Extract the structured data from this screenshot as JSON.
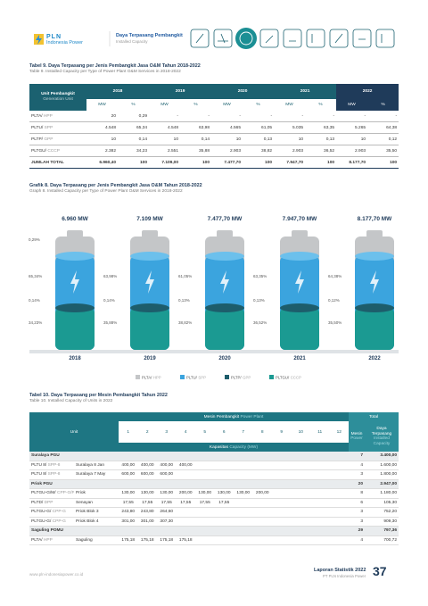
{
  "header": {
    "brand": "PLN",
    "brand_sub": "Indonesia Power",
    "section": "Daya Terpasang Pembangkit",
    "section_en": "Installed Capacity"
  },
  "table9": {
    "title": "Tabel 9. Daya Terpasang per Jenis Pembangkit Jasa O&M Tahun 2018-2022",
    "subtitle": "Table 9. Installed Capacity per Type of Power Plant O&M Services in 2018-2022",
    "unit_header": "Unit Pembangkit",
    "unit_header_en": "Generation Unit",
    "years": [
      "2018",
      "2019",
      "2020",
      "2021",
      "2022"
    ],
    "mw": "MW",
    "pct": "%",
    "rows": [
      {
        "label": "PLTA/",
        "label_en": "HPP",
        "cells": [
          "20",
          "0,29",
          "-",
          "-",
          "-",
          "-",
          "-",
          "-",
          "-",
          "-"
        ]
      },
      {
        "label": "PLTU/",
        "label_en": "SPP",
        "cells": [
          "4.548",
          "65,34",
          "4.548",
          "63,98",
          "4.565",
          "61,05",
          "5.035",
          "63,35",
          "5.265",
          "64,38"
        ]
      },
      {
        "label": "PLTP/",
        "label_en": "GPP",
        "cells": [
          "10",
          "0,14",
          "10",
          "0,14",
          "10",
          "0,13",
          "10",
          "0,13",
          "10",
          "0,12"
        ]
      },
      {
        "label": "PLTGU/",
        "label_en": "CCCP",
        "cells": [
          "2.382",
          "34,23",
          "2.551",
          "35,88",
          "2.903",
          "38,82",
          "2.903",
          "36,52",
          "2.903",
          "35,50"
        ]
      }
    ],
    "total": {
      "label": "JUMLAH TOTAL",
      "cells": [
        "6.960,40",
        "100",
        "7.109,00",
        "100",
        "7.477,70",
        "100",
        "7.947,70",
        "100",
        "8.177,70",
        "100"
      ]
    }
  },
  "graph8": {
    "title": "Grafik 8. Daya Terpasang per Jenis Pembangkit Jasa O&M Tahun 2018-2022",
    "subtitle": "Graph 8. Installed Capacity per Type of Power Plant O&M Services in 2018-2022",
    "years": [
      "2018",
      "2019",
      "2020",
      "2021",
      "2022"
    ],
    "totals": [
      "6.960 MW",
      "7.109 MW",
      "7.477,70 MW",
      "7.947,70 MW",
      "8.177,70 MW"
    ],
    "labels": [
      [
        "0,29%",
        "65,34%",
        "0,14%",
        "34,23%"
      ],
      [
        "63,98%",
        "0,14%",
        "35,88%"
      ],
      [
        "61,05%",
        "0,13%",
        "38,82%"
      ],
      [
        "63,35%",
        "0,13%",
        "36,52%"
      ],
      [
        "64,38%",
        "0,12%",
        "35,50%"
      ]
    ],
    "legend": [
      {
        "label": "PLTA/",
        "label_en": "HPP",
        "color": "#c4c6c8"
      },
      {
        "label": "PLTU/",
        "label_en": "SPP",
        "color": "#3ba4de"
      },
      {
        "label": "PLTP/",
        "label_en": "GPP",
        "color": "#1d5d6b"
      },
      {
        "label": "PLTGU/",
        "label_en": "CCCP",
        "color": "#1b9a92"
      }
    ]
  },
  "table10": {
    "title": "Tabel 10. Daya Terpasang per Mesin Pembangkit Tahun 2022",
    "subtitle": "Table 10. Installed Capacity of Units in 2022",
    "unit_header": "Unit",
    "machine_header": "Mesin Pembangkit",
    "machine_header_en": "Power Plant",
    "total_header": "Total",
    "cols": [
      "1",
      "2",
      "3",
      "4",
      "5",
      "6",
      "7",
      "8",
      "9",
      "10",
      "11",
      "12"
    ],
    "total_machine": "Mesin",
    "total_machine_en": "Power",
    "total_capacity": "Daya Terpasang",
    "total_capacity_en": "Installed Capacity",
    "capacity_header": "Kapasitas",
    "capacity_header_en": "Capacity (MW)",
    "rows": [
      {
        "group": "Suralaya PGU",
        "machines": "7",
        "capacity": "3.400,00"
      },
      {
        "code": "PLTU 8/",
        "code_en": "SPP-8",
        "location": "Suralaya 8 Jan",
        "cells": [
          "400,00",
          "400,00",
          "400,00",
          "400,00"
        ],
        "machines": "4",
        "capacity": "1.600,00"
      },
      {
        "code": "PLTU 8/",
        "code_en": "SPP-8",
        "location": "Suralaya 7 May",
        "cells": [
          "600,00",
          "600,00",
          "600,00"
        ],
        "machines": "3",
        "capacity": "1.800,00"
      },
      {
        "group": "Priok PGU",
        "machines": "20",
        "capacity": "2.947,00"
      },
      {
        "code": "PLTGU-G/M/",
        "code_en": "CPP-G/P",
        "location": "Priok",
        "cells": [
          "130,00",
          "130,00",
          "130,00",
          "200,00",
          "130,00",
          "130,00",
          "130,00",
          "200,00"
        ],
        "machines": "8",
        "capacity": "1.180,00"
      },
      {
        "code": "PLTD/",
        "code_en": "DPP",
        "location": "Senayan",
        "cells": [
          "17,55",
          "17,55",
          "17,55",
          "17,55",
          "17,55",
          "17,55"
        ],
        "machines": "6",
        "capacity": "105,30"
      },
      {
        "code": "PLTGU-G/",
        "code_en": "CPP-G",
        "location": "Priok Blok 3",
        "cells": [
          "243,80",
          "243,80",
          "264,60"
        ],
        "machines": "3",
        "capacity": "752,20"
      },
      {
        "code": "PLTGU-G/",
        "code_en": "CPP-G",
        "location": "Priok Blok 4",
        "cells": [
          "301,00",
          "301,00",
          "307,30"
        ],
        "machines": "3",
        "capacity": "909,30"
      },
      {
        "group": "Saguling POMU",
        "machines": "29",
        "capacity": "797,36"
      },
      {
        "code": "PLTA/",
        "code_en": "HPP",
        "location": "Saguling",
        "cells": [
          "175,18",
          "175,18",
          "175,18",
          "175,18"
        ],
        "machines": "4",
        "capacity": "700,72"
      }
    ]
  },
  "footer": {
    "url": "www.pln-indonesiapower.co.id",
    "report": "Laporan Statistik 2022",
    "company": "PT PLN Indonesia Power",
    "page": "37"
  }
}
